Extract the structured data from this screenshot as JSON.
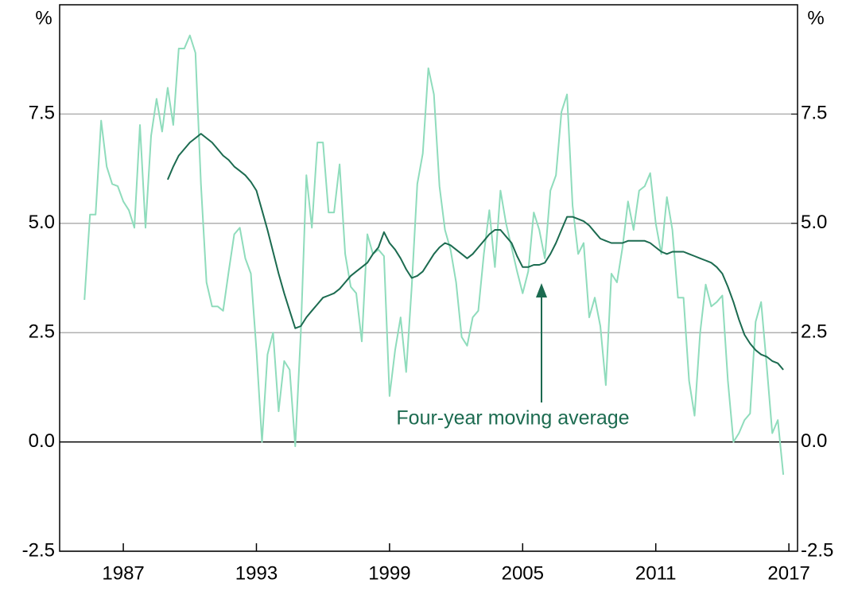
{
  "chart_data": {
    "type": "line",
    "y_unit_label": "%",
    "y2_unit_label": "%",
    "annotation": "Four-year moving average",
    "x": [
      1985.25,
      1985.5,
      1985.75,
      1986,
      1986.25,
      1986.5,
      1986.75,
      1987,
      1987.25,
      1987.5,
      1987.75,
      1988,
      1988.25,
      1988.5,
      1988.75,
      1989,
      1989.25,
      1989.5,
      1989.75,
      1990,
      1990.25,
      1990.5,
      1990.75,
      1991,
      1991.25,
      1991.5,
      1991.75,
      1992,
      1992.25,
      1992.5,
      1992.75,
      1993,
      1993.25,
      1993.5,
      1993.75,
      1994,
      1994.25,
      1994.5,
      1994.75,
      1995,
      1995.25,
      1995.5,
      1995.75,
      1996,
      1996.25,
      1996.5,
      1996.75,
      1997,
      1997.25,
      1997.5,
      1997.75,
      1998,
      1998.25,
      1998.5,
      1998.75,
      1999,
      1999.25,
      1999.5,
      1999.75,
      2000,
      2000.25,
      2000.5,
      2000.75,
      2001,
      2001.25,
      2001.5,
      2001.75,
      2002,
      2002.25,
      2002.5,
      2002.75,
      2003,
      2003.25,
      2003.5,
      2003.75,
      2004,
      2004.25,
      2004.5,
      2004.75,
      2005,
      2005.25,
      2005.5,
      2005.75,
      2006,
      2006.25,
      2006.5,
      2006.75,
      2007,
      2007.25,
      2007.5,
      2007.75,
      2008,
      2008.25,
      2008.5,
      2008.75,
      2009,
      2009.25,
      2009.5,
      2009.75,
      2010,
      2010.25,
      2010.5,
      2010.75,
      2011,
      2011.25,
      2011.5,
      2011.75,
      2012,
      2012.25,
      2012.5,
      2012.75,
      2013,
      2013.25,
      2013.5,
      2013.75,
      2014,
      2014.25,
      2014.5,
      2014.75,
      2015,
      2015.25,
      2015.5,
      2015.75,
      2016,
      2016.25,
      2016.5,
      2016.75
    ],
    "series": [
      {
        "color": "#8fdcbc",
        "width": 2,
        "values": [
          3.25,
          5.2,
          5.2,
          7.35,
          6.3,
          5.9,
          5.85,
          5.5,
          5.3,
          4.9,
          7.25,
          4.9,
          7.0,
          7.85,
          7.1,
          8.1,
          7.25,
          9.0,
          9.0,
          9.3,
          8.9,
          5.9,
          3.65,
          3.1,
          3.1,
          3.0,
          3.9,
          4.75,
          4.9,
          4.2,
          3.85,
          2.1,
          0.0,
          2.0,
          2.5,
          0.7,
          1.85,
          1.65,
          -0.1,
          2.5,
          6.1,
          4.9,
          6.85,
          6.85,
          5.25,
          5.25,
          6.35,
          4.3,
          3.55,
          3.4,
          2.3,
          4.75,
          4.3,
          4.4,
          4.25,
          1.05,
          2.1,
          2.85,
          1.6,
          3.55,
          5.9,
          6.6,
          8.55,
          7.95,
          5.85,
          4.85,
          4.4,
          3.65,
          2.4,
          2.2,
          2.85,
          3.0,
          4.3,
          5.3,
          4.0,
          5.75,
          5.0,
          4.45,
          3.9,
          3.4,
          3.9,
          5.25,
          4.85,
          4.2,
          5.75,
          6.1,
          7.55,
          7.95,
          5.4,
          4.3,
          4.55,
          2.85,
          3.3,
          2.65,
          1.3,
          3.85,
          3.65,
          4.45,
          5.5,
          4.85,
          5.75,
          5.85,
          6.15,
          5.0,
          4.3,
          5.6,
          4.85,
          3.3,
          3.3,
          1.4,
          0.6,
          2.5,
          3.6,
          3.1,
          3.2,
          3.35,
          1.4,
          0.0,
          0.2,
          0.5,
          0.65,
          2.75,
          3.2,
          1.75,
          0.2,
          0.5,
          -0.75
        ]
      },
      {
        "color": "#1c6b50",
        "width": 2,
        "values": [
          null,
          null,
          null,
          null,
          null,
          null,
          null,
          null,
          null,
          null,
          null,
          null,
          null,
          null,
          null,
          6.0,
          6.3,
          6.55,
          6.7,
          6.85,
          6.95,
          7.05,
          6.95,
          6.85,
          6.7,
          6.55,
          6.45,
          6.3,
          6.2,
          6.1,
          5.95,
          5.75,
          5.3,
          4.85,
          4.35,
          3.85,
          3.4,
          3.0,
          2.6,
          2.65,
          2.85,
          3.0,
          3.15,
          3.3,
          3.35,
          3.4,
          3.5,
          3.65,
          3.8,
          3.9,
          4.0,
          4.1,
          4.3,
          4.45,
          4.8,
          4.55,
          4.4,
          4.2,
          3.95,
          3.75,
          3.8,
          3.9,
          4.1,
          4.3,
          4.45,
          4.55,
          4.5,
          4.4,
          4.3,
          4.2,
          4.3,
          4.45,
          4.6,
          4.75,
          4.85,
          4.85,
          4.7,
          4.55,
          4.25,
          4.0,
          4.0,
          4.05,
          4.05,
          4.1,
          4.3,
          4.55,
          4.85,
          5.15,
          5.15,
          5.1,
          5.05,
          4.95,
          4.8,
          4.65,
          4.6,
          4.55,
          4.55,
          4.55,
          4.6,
          4.6,
          4.6,
          4.6,
          4.55,
          4.45,
          4.35,
          4.3,
          4.35,
          4.35,
          4.35,
          4.3,
          4.25,
          4.2,
          4.15,
          4.1,
          4.0,
          3.85,
          3.55,
          3.2,
          2.8,
          2.45,
          2.25,
          2.1,
          2.0,
          1.95,
          1.85,
          1.8,
          1.65
        ]
      }
    ],
    "xlim": [
      1984.13,
      2017.39
    ],
    "xticks": [
      1987,
      1993,
      1999,
      2005,
      2011,
      2017
    ],
    "ylim": [
      -2.5,
      10
    ],
    "yticks": [
      {
        "value": -2.5,
        "label": "-2.5"
      },
      {
        "value": 0,
        "label": "0.0"
      },
      2.5,
      {
        "value": 5,
        "label": "5.0"
      },
      7.5
    ],
    "y2lim": [
      -2.5,
      10
    ],
    "y2ticks": [
      {
        "value": -2.5,
        "label": "-2.5"
      },
      {
        "value": 0,
        "label": "0.0"
      },
      2.5,
      {
        "value": 5,
        "label": "5.0"
      },
      7.5
    ],
    "grid": true,
    "annotation_color": "#1c6b50"
  }
}
